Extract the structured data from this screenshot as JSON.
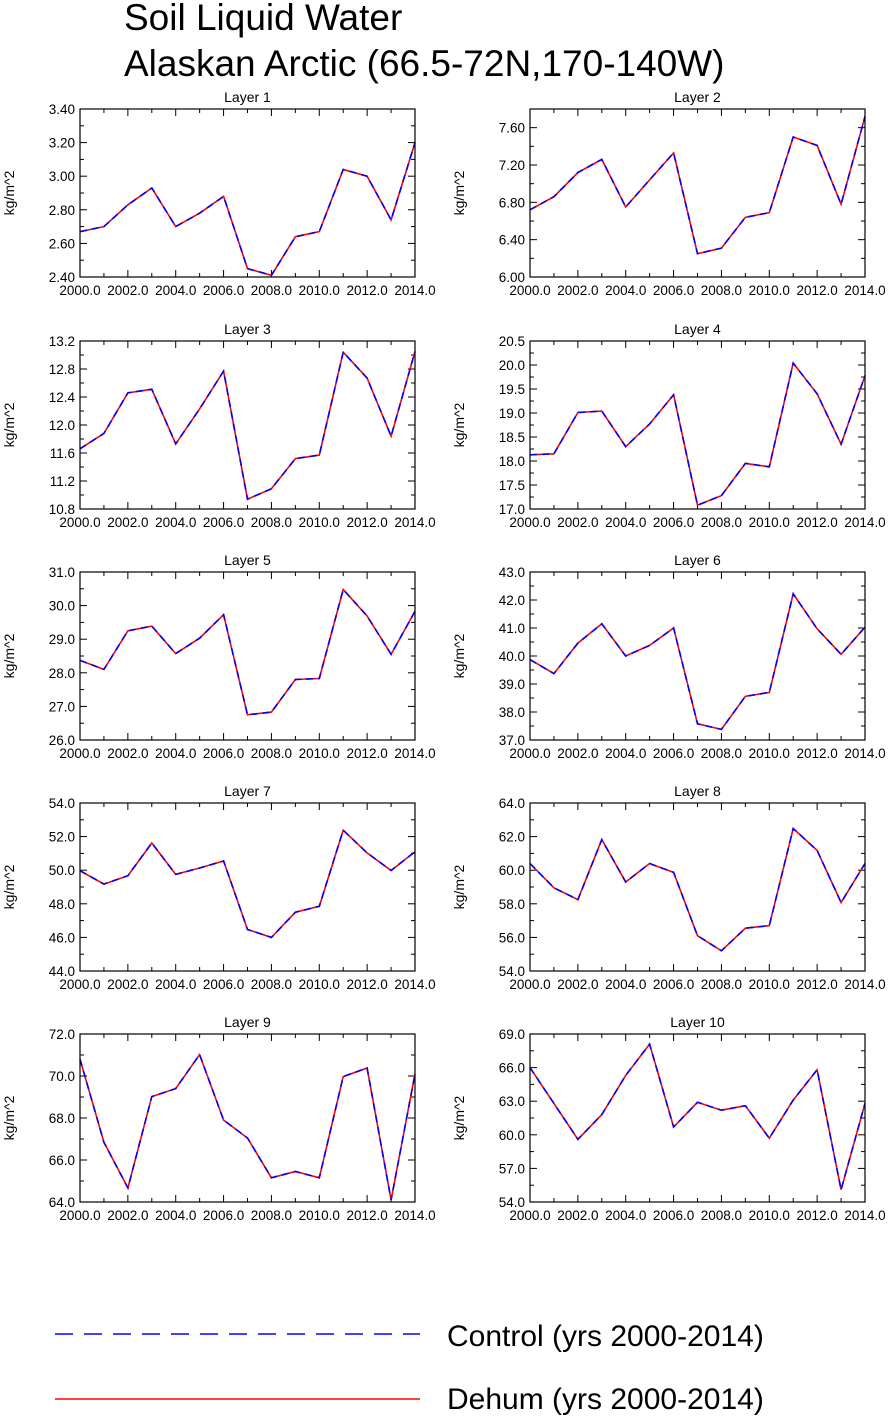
{
  "title": [
    "Soil Liquid Water",
    "Alaskan Arctic (66.5-72N,170-140W)"
  ],
  "legend": [
    {
      "label": "Control (yrs 2000-2014)",
      "color": "#0000ff",
      "style": "dashed"
    },
    {
      "label": "Dehum (yrs 2000-2014)",
      "color": "#ff0000",
      "style": "solid"
    }
  ],
  "chart_data": [
    {
      "type": "line",
      "title": "Layer 1",
      "ylabel": "kg/m^2",
      "xlim": [
        2000,
        2014
      ],
      "ylim": [
        2.4,
        3.4
      ],
      "x_ticks": [
        "2000.0",
        "2002.0",
        "2004.0",
        "2006.0",
        "2008.0",
        "2010.0",
        "2012.0",
        "2014.0"
      ],
      "y_ticks": [
        "2.40",
        "2.60",
        "2.80",
        "3.00",
        "3.20",
        "3.40"
      ],
      "x": [
        2000,
        2001,
        2002,
        2003,
        2004,
        2005,
        2006,
        2007,
        2008,
        2009,
        2010,
        2011,
        2012,
        2013,
        2014
      ],
      "series": [
        {
          "name": "Control (yrs 2000-2014)",
          "values": [
            2.67,
            2.7,
            2.83,
            2.93,
            2.7,
            2.78,
            2.88,
            2.45,
            2.41,
            2.64,
            2.67,
            3.04,
            3.0,
            2.74,
            3.2
          ]
        },
        {
          "name": "Dehum (yrs 2000-2014)",
          "values": [
            2.67,
            2.7,
            2.83,
            2.93,
            2.7,
            2.78,
            2.88,
            2.45,
            2.41,
            2.64,
            2.67,
            3.04,
            3.0,
            2.74,
            3.2
          ]
        }
      ]
    },
    {
      "type": "line",
      "title": "Layer 2",
      "ylabel": "kg/m^2",
      "xlim": [
        2000,
        2014
      ],
      "ylim": [
        6.0,
        7.8
      ],
      "x_ticks": [
        "2000.0",
        "2002.0",
        "2004.0",
        "2006.0",
        "2008.0",
        "2010.0",
        "2012.0",
        "2014.0"
      ],
      "y_ticks": [
        "6.00",
        "6.40",
        "6.80",
        "7.20",
        "7.60"
      ],
      "x": [
        2000,
        2001,
        2002,
        2003,
        2004,
        2005,
        2006,
        2007,
        2008,
        2009,
        2010,
        2011,
        2012,
        2013,
        2014
      ],
      "series": [
        {
          "name": "Control (yrs 2000-2014)",
          "values": [
            6.72,
            6.86,
            7.12,
            7.26,
            6.75,
            7.04,
            7.33,
            6.25,
            6.31,
            6.64,
            6.69,
            7.5,
            7.41,
            6.78,
            7.72
          ]
        },
        {
          "name": "Dehum (yrs 2000-2014)",
          "values": [
            6.72,
            6.86,
            7.12,
            7.26,
            6.75,
            7.04,
            7.33,
            6.25,
            6.31,
            6.64,
            6.69,
            7.5,
            7.41,
            6.78,
            7.72
          ]
        }
      ]
    },
    {
      "type": "line",
      "title": "Layer 3",
      "ylabel": "kg/m^2",
      "xlim": [
        2000,
        2014
      ],
      "ylim": [
        10.8,
        13.2
      ],
      "x_ticks": [
        "2000.0",
        "2002.0",
        "2004.0",
        "2006.0",
        "2008.0",
        "2010.0",
        "2012.0",
        "2014.0"
      ],
      "y_ticks": [
        "10.8",
        "11.2",
        "11.6",
        "12.0",
        "12.4",
        "12.8",
        "13.2"
      ],
      "x": [
        2000,
        2001,
        2002,
        2003,
        2004,
        2005,
        2006,
        2007,
        2008,
        2009,
        2010,
        2011,
        2012,
        2013,
        2014
      ],
      "series": [
        {
          "name": "Control (yrs 2000-2014)",
          "values": [
            11.66,
            11.88,
            12.46,
            12.51,
            11.73,
            12.23,
            12.77,
            10.94,
            11.09,
            11.52,
            11.57,
            13.04,
            12.67,
            11.84,
            13.05
          ]
        },
        {
          "name": "Dehum (yrs 2000-2014)",
          "values": [
            11.66,
            11.88,
            12.46,
            12.51,
            11.73,
            12.23,
            12.77,
            10.94,
            11.09,
            11.52,
            11.57,
            13.04,
            12.67,
            11.84,
            13.05
          ]
        }
      ]
    },
    {
      "type": "line",
      "title": "Layer 4",
      "ylabel": "kg/m^2",
      "xlim": [
        2000,
        2014
      ],
      "ylim": [
        17.0,
        20.5
      ],
      "x_ticks": [
        "2000.0",
        "2002.0",
        "2004.0",
        "2006.0",
        "2008.0",
        "2010.0",
        "2012.0",
        "2014.0"
      ],
      "y_ticks": [
        "17.0",
        "17.5",
        "18.0",
        "18.5",
        "19.0",
        "19.5",
        "20.0",
        "20.5"
      ],
      "x": [
        2000,
        2001,
        2002,
        2003,
        2004,
        2005,
        2006,
        2007,
        2008,
        2009,
        2010,
        2011,
        2012,
        2013,
        2014
      ],
      "series": [
        {
          "name": "Control (yrs 2000-2014)",
          "values": [
            18.13,
            18.15,
            19.01,
            19.04,
            18.3,
            18.77,
            19.38,
            17.08,
            17.28,
            17.95,
            17.88,
            20.04,
            19.4,
            18.35,
            19.78
          ]
        },
        {
          "name": "Dehum (yrs 2000-2014)",
          "values": [
            18.13,
            18.15,
            19.01,
            19.04,
            18.3,
            18.77,
            19.38,
            17.08,
            17.28,
            17.95,
            17.88,
            20.04,
            19.4,
            18.35,
            19.78
          ]
        }
      ]
    },
    {
      "type": "line",
      "title": "Layer 5",
      "ylabel": "kg/m^2",
      "xlim": [
        2000,
        2014
      ],
      "ylim": [
        26.0,
        31.0
      ],
      "x_ticks": [
        "2000.0",
        "2002.0",
        "2004.0",
        "2006.0",
        "2008.0",
        "2010.0",
        "2012.0",
        "2014.0"
      ],
      "y_ticks": [
        "26.0",
        "27.0",
        "28.0",
        "29.0",
        "30.0",
        "31.0"
      ],
      "x": [
        2000,
        2001,
        2002,
        2003,
        2004,
        2005,
        2006,
        2007,
        2008,
        2009,
        2010,
        2011,
        2012,
        2013,
        2014
      ],
      "series": [
        {
          "name": "Control (yrs 2000-2014)",
          "values": [
            28.37,
            28.1,
            29.25,
            29.39,
            28.57,
            29.03,
            29.73,
            26.75,
            26.83,
            27.8,
            27.83,
            30.48,
            29.69,
            28.55,
            29.83
          ]
        },
        {
          "name": "Dehum (yrs 2000-2014)",
          "values": [
            28.37,
            28.1,
            29.25,
            29.39,
            28.57,
            29.03,
            29.73,
            26.75,
            26.83,
            27.8,
            27.83,
            30.48,
            29.69,
            28.55,
            29.83
          ]
        }
      ]
    },
    {
      "type": "line",
      "title": "Layer 6",
      "ylabel": "kg/m^2",
      "xlim": [
        2000,
        2014
      ],
      "ylim": [
        37.0,
        43.0
      ],
      "x_ticks": [
        "2000.0",
        "2002.0",
        "2004.0",
        "2006.0",
        "2008.0",
        "2010.0",
        "2012.0",
        "2014.0"
      ],
      "y_ticks": [
        "37.0",
        "38.0",
        "39.0",
        "40.0",
        "41.0",
        "42.0",
        "43.0"
      ],
      "x": [
        2000,
        2001,
        2002,
        2003,
        2004,
        2005,
        2006,
        2007,
        2008,
        2009,
        2010,
        2011,
        2012,
        2013,
        2014
      ],
      "series": [
        {
          "name": "Control (yrs 2000-2014)",
          "values": [
            39.87,
            39.37,
            40.46,
            41.15,
            40.0,
            40.38,
            41.0,
            37.58,
            37.38,
            38.56,
            38.7,
            42.22,
            40.97,
            40.06,
            41.03
          ]
        },
        {
          "name": "Dehum (yrs 2000-2014)",
          "values": [
            39.87,
            39.37,
            40.46,
            41.15,
            40.0,
            40.38,
            41.0,
            37.58,
            37.38,
            38.56,
            38.7,
            42.22,
            40.97,
            40.06,
            41.03
          ]
        }
      ]
    },
    {
      "type": "line",
      "title": "Layer 7",
      "ylabel": "kg/m^2",
      "xlim": [
        2000,
        2014
      ],
      "ylim": [
        44.0,
        54.0
      ],
      "x_ticks": [
        "2000.0",
        "2002.0",
        "2004.0",
        "2006.0",
        "2008.0",
        "2010.0",
        "2012.0",
        "2014.0"
      ],
      "y_ticks": [
        "44.0",
        "46.0",
        "48.0",
        "50.0",
        "52.0",
        "54.0"
      ],
      "x": [
        2000,
        2001,
        2002,
        2003,
        2004,
        2005,
        2006,
        2007,
        2008,
        2009,
        2010,
        2011,
        2012,
        2013,
        2014
      ],
      "series": [
        {
          "name": "Control (yrs 2000-2014)",
          "values": [
            49.97,
            49.17,
            49.67,
            51.62,
            49.75,
            50.13,
            50.55,
            46.47,
            46.0,
            47.5,
            47.85,
            52.38,
            51.03,
            49.98,
            51.1
          ]
        },
        {
          "name": "Dehum (yrs 2000-2014)",
          "values": [
            49.97,
            49.17,
            49.67,
            51.62,
            49.75,
            50.13,
            50.55,
            46.47,
            46.0,
            47.5,
            47.85,
            52.38,
            51.03,
            49.98,
            51.1
          ]
        }
      ]
    },
    {
      "type": "line",
      "title": "Layer 8",
      "ylabel": "kg/m^2",
      "xlim": [
        2000,
        2014
      ],
      "ylim": [
        54.0,
        64.0
      ],
      "x_ticks": [
        "2000.0",
        "2002.0",
        "2004.0",
        "2006.0",
        "2008.0",
        "2010.0",
        "2012.0",
        "2014.0"
      ],
      "y_ticks": [
        "54.0",
        "56.0",
        "58.0",
        "60.0",
        "62.0",
        "64.0"
      ],
      "x": [
        2000,
        2001,
        2002,
        2003,
        2004,
        2005,
        2006,
        2007,
        2008,
        2009,
        2010,
        2011,
        2012,
        2013,
        2014
      ],
      "series": [
        {
          "name": "Control (yrs 2000-2014)",
          "values": [
            60.4,
            58.95,
            58.25,
            61.82,
            59.3,
            60.4,
            59.87,
            56.1,
            55.2,
            56.55,
            56.7,
            62.48,
            61.18,
            58.08,
            60.4
          ]
        },
        {
          "name": "Dehum (yrs 2000-2014)",
          "values": [
            60.4,
            58.95,
            58.25,
            61.82,
            59.3,
            60.4,
            59.87,
            56.1,
            55.2,
            56.55,
            56.7,
            62.48,
            61.18,
            58.08,
            60.4
          ]
        }
      ]
    },
    {
      "type": "line",
      "title": "Layer 9",
      "ylabel": "kg/m^2",
      "xlim": [
        2000,
        2014
      ],
      "ylim": [
        64.0,
        72.0
      ],
      "x_ticks": [
        "2000.0",
        "2002.0",
        "2004.0",
        "2006.0",
        "2008.0",
        "2010.0",
        "2012.0",
        "2014.0"
      ],
      "y_ticks": [
        "64.0",
        "66.0",
        "68.0",
        "70.0",
        "72.0"
      ],
      "x": [
        2000,
        2001,
        2002,
        2003,
        2004,
        2005,
        2006,
        2007,
        2008,
        2009,
        2010,
        2011,
        2012,
        2013,
        2014
      ],
      "series": [
        {
          "name": "Control (yrs 2000-2014)",
          "values": [
            70.8,
            66.85,
            64.67,
            69.02,
            69.4,
            71.02,
            67.9,
            67.05,
            65.15,
            65.45,
            65.15,
            69.97,
            70.38,
            64.1,
            70.1
          ]
        },
        {
          "name": "Dehum (yrs 2000-2014)",
          "values": [
            70.8,
            66.85,
            64.67,
            69.02,
            69.4,
            71.02,
            67.9,
            67.05,
            65.15,
            65.45,
            65.15,
            69.97,
            70.38,
            64.1,
            70.1
          ]
        }
      ]
    },
    {
      "type": "line",
      "title": "Layer 10",
      "ylabel": "kg/m^2",
      "xlim": [
        2000,
        2014
      ],
      "ylim": [
        54.0,
        69.0
      ],
      "x_ticks": [
        "2000.0",
        "2002.0",
        "2004.0",
        "2006.0",
        "2008.0",
        "2010.0",
        "2012.0",
        "2014.0"
      ],
      "y_ticks": [
        "54.0",
        "57.0",
        "60.0",
        "63.0",
        "66.0",
        "69.0"
      ],
      "x": [
        2000,
        2001,
        2002,
        2003,
        2004,
        2005,
        2006,
        2007,
        2008,
        2009,
        2010,
        2011,
        2012,
        2013,
        2014
      ],
      "series": [
        {
          "name": "Control (yrs 2000-2014)",
          "values": [
            66.0,
            62.8,
            59.6,
            61.8,
            65.3,
            68.1,
            60.7,
            62.9,
            62.2,
            62.6,
            59.7,
            63.1,
            65.8,
            55.1,
            62.8
          ]
        },
        {
          "name": "Dehum (yrs 2000-2014)",
          "values": [
            66.0,
            62.8,
            59.6,
            61.8,
            65.3,
            68.1,
            60.7,
            62.9,
            62.2,
            62.6,
            59.7,
            63.1,
            65.8,
            55.1,
            62.8
          ]
        }
      ]
    }
  ]
}
